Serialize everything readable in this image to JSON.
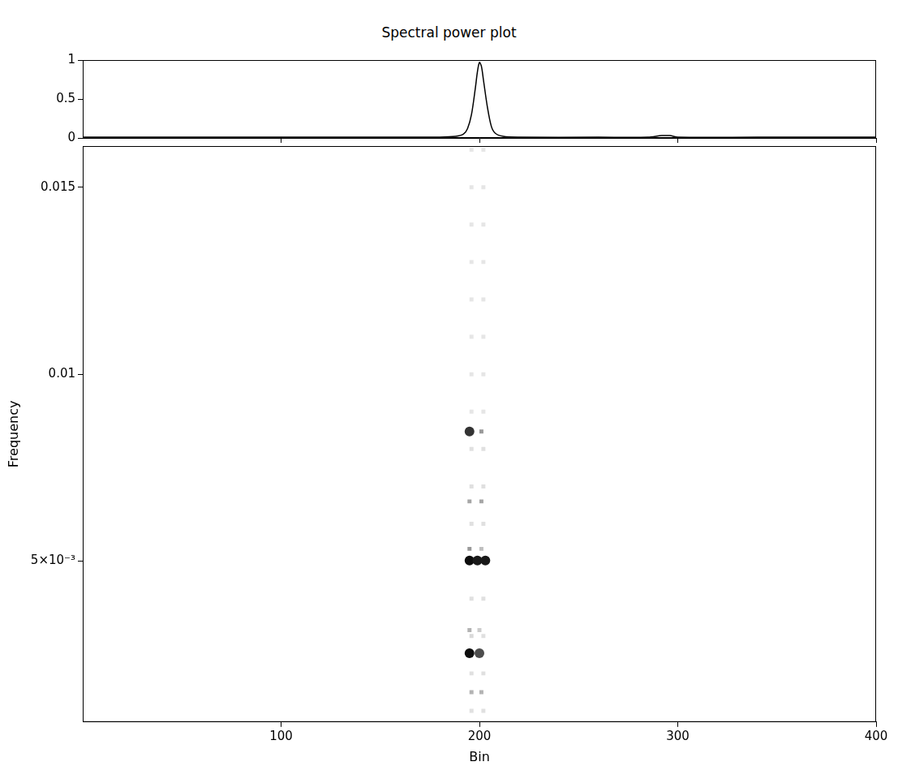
{
  "chart_data": [
    {
      "type": "line",
      "title": "Spectral power plot",
      "color": "#000000",
      "x": [
        0,
        40,
        80,
        120,
        160,
        180,
        188,
        192,
        194,
        196,
        198,
        199,
        200,
        201,
        202,
        204,
        206,
        208,
        212,
        220,
        260,
        285,
        292,
        296,
        300,
        340,
        380,
        400
      ],
      "values": [
        0.01,
        0.01,
        0.01,
        0.01,
        0.01,
        0.01,
        0.02,
        0.05,
        0.12,
        0.3,
        0.65,
        0.85,
        0.97,
        0.92,
        0.75,
        0.4,
        0.15,
        0.06,
        0.02,
        0.01,
        0.01,
        0.01,
        0.03,
        0.03,
        0.01,
        0.01,
        0.01,
        0.01
      ],
      "xlim": [
        0,
        400
      ],
      "xticks": [
        100,
        200,
        300,
        400
      ],
      "ylim": [
        0,
        1
      ],
      "yticks": [
        0,
        0.5,
        1
      ],
      "tick_labels": "y",
      "grid": false
    },
    {
      "type": "heatmap",
      "x_label": "Bin",
      "y_label": "Frequency",
      "xlim": [
        0,
        400
      ],
      "xticks": [
        100,
        200,
        300,
        400
      ],
      "ylim": [
        0.0007,
        0.0161
      ],
      "yticks": [
        {
          "value": 0.005,
          "label": "5×10⁻³"
        },
        0.01,
        0.015
      ],
      "grid": false,
      "cells": [
        {
          "x": 196,
          "y": 0.001,
          "value": 0.12
        },
        {
          "x": 202,
          "y": 0.001,
          "value": 0.12
        },
        {
          "x": 196,
          "y": 0.002,
          "value": 0.12
        },
        {
          "x": 202,
          "y": 0.002,
          "value": 0.12
        },
        {
          "x": 196,
          "y": 0.003,
          "value": 0.15
        },
        {
          "x": 202,
          "y": 0.003,
          "value": 0.12
        },
        {
          "x": 196,
          "y": 0.004,
          "value": 0.12
        },
        {
          "x": 202,
          "y": 0.004,
          "value": 0.12
        },
        {
          "x": 196,
          "y": 0.006,
          "value": 0.12
        },
        {
          "x": 202,
          "y": 0.006,
          "value": 0.12
        },
        {
          "x": 196,
          "y": 0.007,
          "value": 0.12
        },
        {
          "x": 202,
          "y": 0.007,
          "value": 0.12
        },
        {
          "x": 196,
          "y": 0.008,
          "value": 0.12
        },
        {
          "x": 202,
          "y": 0.008,
          "value": 0.12
        },
        {
          "x": 196,
          "y": 0.009,
          "value": 0.1
        },
        {
          "x": 202,
          "y": 0.009,
          "value": 0.1
        },
        {
          "x": 196,
          "y": 0.01,
          "value": 0.1
        },
        {
          "x": 202,
          "y": 0.01,
          "value": 0.1
        },
        {
          "x": 196,
          "y": 0.011,
          "value": 0.1
        },
        {
          "x": 202,
          "y": 0.011,
          "value": 0.1
        },
        {
          "x": 196,
          "y": 0.012,
          "value": 0.1
        },
        {
          "x": 202,
          "y": 0.012,
          "value": 0.1
        },
        {
          "x": 196,
          "y": 0.013,
          "value": 0.1
        },
        {
          "x": 202,
          "y": 0.013,
          "value": 0.1
        },
        {
          "x": 196,
          "y": 0.014,
          "value": 0.1
        },
        {
          "x": 202,
          "y": 0.014,
          "value": 0.1
        },
        {
          "x": 196,
          "y": 0.015,
          "value": 0.1
        },
        {
          "x": 202,
          "y": 0.015,
          "value": 0.1
        },
        {
          "x": 196,
          "y": 0.016,
          "value": 0.1
        },
        {
          "x": 202,
          "y": 0.016,
          "value": 0.1
        },
        {
          "x": 195,
          "y": 0.00847,
          "value": 0.8
        },
        {
          "x": 201,
          "y": 0.00847,
          "value": 0.4
        },
        {
          "x": 195,
          "y": 0.0066,
          "value": 0.35
        },
        {
          "x": 201,
          "y": 0.0066,
          "value": 0.35
        },
        {
          "x": 195,
          "y": 0.00533,
          "value": 0.4
        },
        {
          "x": 201,
          "y": 0.00533,
          "value": 0.25
        },
        {
          "x": 195,
          "y": 0.00502,
          "value": 0.95
        },
        {
          "x": 199,
          "y": 0.00502,
          "value": 0.9
        },
        {
          "x": 203,
          "y": 0.00502,
          "value": 0.9
        },
        {
          "x": 195,
          "y": 0.00316,
          "value": 0.3
        },
        {
          "x": 200,
          "y": 0.00316,
          "value": 0.2
        },
        {
          "x": 195,
          "y": 0.00254,
          "value": 0.95
        },
        {
          "x": 200,
          "y": 0.00254,
          "value": 0.7
        },
        {
          "x": 196,
          "y": 0.0015,
          "value": 0.3
        },
        {
          "x": 201,
          "y": 0.0015,
          "value": 0.3
        }
      ]
    }
  ]
}
